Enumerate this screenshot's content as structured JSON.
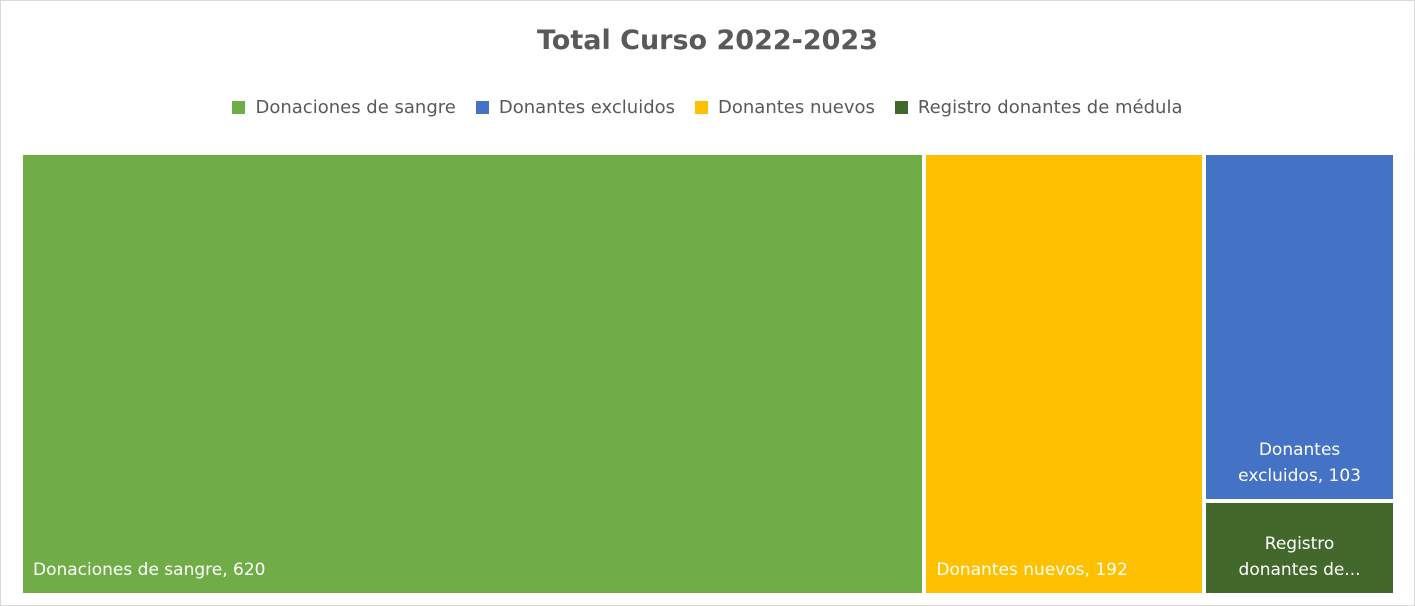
{
  "chart_data": {
    "type": "treemap",
    "title": "Total Curso 2022-2023",
    "categories": [
      "Donaciones de sangre",
      "Donantes excluidos",
      "Donantes nuevos",
      "Registro donantes de médula"
    ],
    "values": [
      620,
      103,
      192,
      28
    ],
    "value_labels": [
      "Donaciones de sangre, 620",
      "Donantes excluidos, 103",
      "Donantes nuevos, 192",
      "Registro donantes de..."
    ],
    "colors": [
      "#70ad47",
      "#4472c4",
      "#ffc000",
      "#43682b"
    ],
    "legend": "top"
  }
}
